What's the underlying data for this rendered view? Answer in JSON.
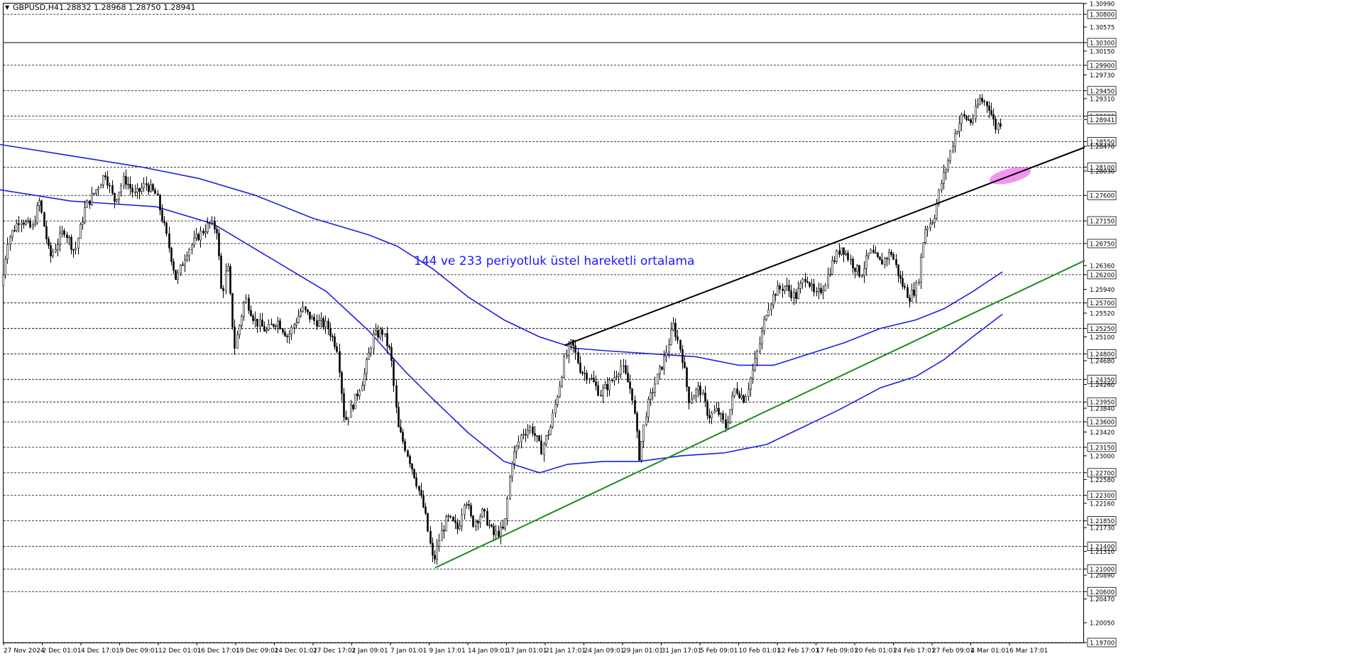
{
  "header": {
    "symbol": "GBPUSD,H4",
    "ohlc": "1.28832 1.28968 1.28750 1.28941"
  },
  "annotation": {
    "text": "144 ve 233 periyotluk üstel hareketli ortalama",
    "color": "#1a1aff"
  },
  "colors": {
    "candles": "#000000",
    "ema": "#1e1ee6",
    "resistance_line": "#000000",
    "support_line": "#1f8a1f",
    "highlight": "#ee82ee",
    "grid_dashed": "#000000"
  },
  "chart_data": {
    "type": "candlestick",
    "symbol": "GBPUSD",
    "timeframe": "H4",
    "ylim": [
      1.197,
      1.3099
    ],
    "price_axis_ticks": [
      "1.30990",
      "1.30800",
      "1.30575",
      "1.30300",
      "1.30150",
      "1.29900",
      "1.29730",
      "1.29450",
      "1.29310",
      "1.29000",
      "1.28941",
      "1.28550",
      "1.28470",
      "1.28100",
      "1.28030",
      "1.27600",
      "1.27150",
      "1.26750",
      "1.26360",
      "1.26200",
      "1.25940",
      "1.25700",
      "1.25520",
      "1.25250",
      "1.25100",
      "1.24800",
      "1.24680",
      "1.24350",
      "1.24260",
      "1.23950",
      "1.23840",
      "1.23600",
      "1.23420",
      "1.23150",
      "1.23000",
      "1.22700",
      "1.22580",
      "1.22300",
      "1.22160",
      "1.21850",
      "1.21730",
      "1.21400",
      "1.21310",
      "1.21000",
      "1.20890",
      "1.20600",
      "1.20470",
      "1.20050",
      "1.19700"
    ],
    "horizontal_levels": [
      1.308,
      1.303,
      1.299,
      1.2945,
      1.29,
      1.2855,
      1.281,
      1.276,
      1.2715,
      1.2675,
      1.262,
      1.257,
      1.2525,
      1.248,
      1.2435,
      1.2395,
      1.236,
      1.2315,
      1.227,
      1.223,
      1.2185,
      1.214,
      1.21,
      1.206,
      1.197
    ],
    "solid_level": 1.303,
    "current_price": 1.28941,
    "x_labels": [
      "27 Nov 2024",
      "2 Dec 01:01",
      "4 Dec 17:01",
      "9 Dec 09:01",
      "12 Dec 01:01",
      "16 Dec 17:01",
      "19 Dec 09:01",
      "24 Dec 01:01",
      "27 Dec 17:01",
      "2 Jan 09:01",
      "7 Jan 01:01",
      "9 Jan 17:01",
      "14 Jan 09:01",
      "17 Jan 01:01",
      "21 Jan 17:01",
      "24 Jan 09:01",
      "29 Jan 01:01",
      "31 Jan 17:01",
      "5 Feb 09:01",
      "10 Feb 01:01",
      "12 Feb 17:01",
      "17 Feb 09:01",
      "20 Feb 01:01",
      "24 Feb 17:01",
      "27 Feb 09:01",
      "4 Mar 01:01",
      "6 Mar 17:01"
    ],
    "price_path": [
      [
        0,
        1.258
      ],
      [
        10,
        1.268
      ],
      [
        28,
        1.272
      ],
      [
        45,
        1.27
      ],
      [
        55,
        1.275
      ],
      [
        70,
        1.265
      ],
      [
        90,
        1.27
      ],
      [
        105,
        1.266
      ],
      [
        120,
        1.274
      ],
      [
        135,
        1.277
      ],
      [
        148,
        1.28
      ],
      [
        160,
        1.275
      ],
      [
        175,
        1.279
      ],
      [
        190,
        1.276
      ],
      [
        205,
        1.278
      ],
      [
        220,
        1.276
      ],
      [
        232,
        1.27
      ],
      [
        248,
        1.261
      ],
      [
        262,
        1.266
      ],
      [
        280,
        1.269
      ],
      [
        295,
        1.271
      ],
      [
        305,
        1.27
      ],
      [
        312,
        1.258
      ],
      [
        320,
        1.264
      ],
      [
        330,
        1.249
      ],
      [
        345,
        1.258
      ],
      [
        358,
        1.254
      ],
      [
        375,
        1.252
      ],
      [
        390,
        1.254
      ],
      [
        405,
        1.251
      ],
      [
        425,
        1.256
      ],
      [
        440,
        1.254
      ],
      [
        460,
        1.253
      ],
      [
        475,
        1.249
      ],
      [
        485,
        1.236
      ],
      [
        500,
        1.24
      ],
      [
        512,
        1.244
      ],
      [
        525,
        1.251
      ],
      [
        538,
        1.252
      ],
      [
        550,
        1.248
      ],
      [
        560,
        1.235
      ],
      [
        572,
        1.231
      ],
      [
        585,
        1.226
      ],
      [
        598,
        1.22
      ],
      [
        610,
        1.211
      ],
      [
        620,
        1.216
      ],
      [
        630,
        1.219
      ],
      [
        645,
        1.217
      ],
      [
        655,
        1.223
      ],
      [
        665,
        1.218
      ],
      [
        680,
        1.22
      ],
      [
        695,
        1.216
      ],
      [
        710,
        1.217
      ],
      [
        720,
        1.229
      ],
      [
        735,
        1.234
      ],
      [
        748,
        1.235
      ],
      [
        762,
        1.231
      ],
      [
        775,
        1.235
      ],
      [
        785,
        1.241
      ],
      [
        795,
        1.247
      ],
      [
        805,
        1.25
      ],
      [
        818,
        1.245
      ],
      [
        830,
        1.244
      ],
      [
        845,
        1.241
      ],
      [
        860,
        1.243
      ],
      [
        875,
        1.246
      ],
      [
        890,
        1.241
      ],
      [
        900,
        1.23
      ],
      [
        910,
        1.238
      ],
      [
        920,
        1.242
      ],
      [
        935,
        1.247
      ],
      [
        948,
        1.253
      ],
      [
        960,
        1.248
      ],
      [
        970,
        1.24
      ],
      [
        985,
        1.242
      ],
      [
        998,
        1.237
      ],
      [
        1010,
        1.238
      ],
      [
        1022,
        1.235
      ],
      [
        1035,
        1.242
      ],
      [
        1048,
        1.24
      ],
      [
        1060,
        1.245
      ],
      [
        1070,
        1.25
      ],
      [
        1080,
        1.256
      ],
      [
        1092,
        1.259
      ],
      [
        1105,
        1.26
      ],
      [
        1120,
        1.258
      ],
      [
        1135,
        1.262
      ],
      [
        1148,
        1.258
      ],
      [
        1160,
        1.26
      ],
      [
        1172,
        1.264
      ],
      [
        1185,
        1.267
      ],
      [
        1200,
        1.264
      ],
      [
        1212,
        1.262
      ],
      [
        1225,
        1.266
      ],
      [
        1240,
        1.264
      ],
      [
        1255,
        1.266
      ],
      [
        1268,
        1.261
      ],
      [
        1280,
        1.258
      ],
      [
        1292,
        1.26
      ],
      [
        1302,
        1.27
      ],
      [
        1315,
        1.272
      ],
      [
        1325,
        1.278
      ],
      [
        1335,
        1.282
      ],
      [
        1345,
        1.287
      ],
      [
        1355,
        1.29
      ],
      [
        1368,
        1.289
      ],
      [
        1380,
        1.293
      ],
      [
        1392,
        1.292
      ],
      [
        1402,
        1.288
      ],
      [
        1412,
        1.2894
      ]
    ],
    "ema_144": [
      [
        0,
        1.277
      ],
      [
        100,
        1.275
      ],
      [
        220,
        1.274
      ],
      [
        300,
        1.271
      ],
      [
        380,
        1.265
      ],
      [
        460,
        1.259
      ],
      [
        520,
        1.252
      ],
      [
        570,
        1.245
      ],
      [
        610,
        1.24
      ],
      [
        660,
        1.234
      ],
      [
        710,
        1.229
      ],
      [
        760,
        1.227
      ],
      [
        800,
        1.2285
      ],
      [
        850,
        1.229
      ],
      [
        900,
        1.229
      ],
      [
        960,
        1.23
      ],
      [
        1020,
        1.2305
      ],
      [
        1080,
        1.232
      ],
      [
        1130,
        1.235
      ],
      [
        1180,
        1.238
      ],
      [
        1240,
        1.242
      ],
      [
        1290,
        1.244
      ],
      [
        1330,
        1.247
      ],
      [
        1370,
        1.251
      ],
      [
        1412,
        1.255
      ]
    ],
    "ema_233": [
      [
        0,
        1.285
      ],
      [
        100,
        1.283
      ],
      [
        200,
        1.281
      ],
      [
        280,
        1.279
      ],
      [
        360,
        1.276
      ],
      [
        440,
        1.272
      ],
      [
        520,
        1.269
      ],
      [
        560,
        1.267
      ],
      [
        610,
        1.263
      ],
      [
        660,
        1.258
      ],
      [
        710,
        1.254
      ],
      [
        760,
        1.251
      ],
      [
        810,
        1.249
      ],
      [
        860,
        1.2485
      ],
      [
        920,
        1.248
      ],
      [
        980,
        1.2475
      ],
      [
        1040,
        1.246
      ],
      [
        1090,
        1.246
      ],
      [
        1140,
        1.248
      ],
      [
        1190,
        1.25
      ],
      [
        1240,
        1.2525
      ],
      [
        1290,
        1.254
      ],
      [
        1330,
        1.256
      ],
      [
        1370,
        1.259
      ],
      [
        1412,
        1.2625
      ]
    ],
    "resistance_trendline": [
      [
        795,
        1.2495
      ],
      [
        1528,
        1.2845
      ]
    ],
    "support_trendline": [
      [
        613,
        1.2102
      ],
      [
        1528,
        1.2645
      ]
    ],
    "highlight_zone": {
      "center": [
        1418,
        1.2795
      ]
    }
  }
}
